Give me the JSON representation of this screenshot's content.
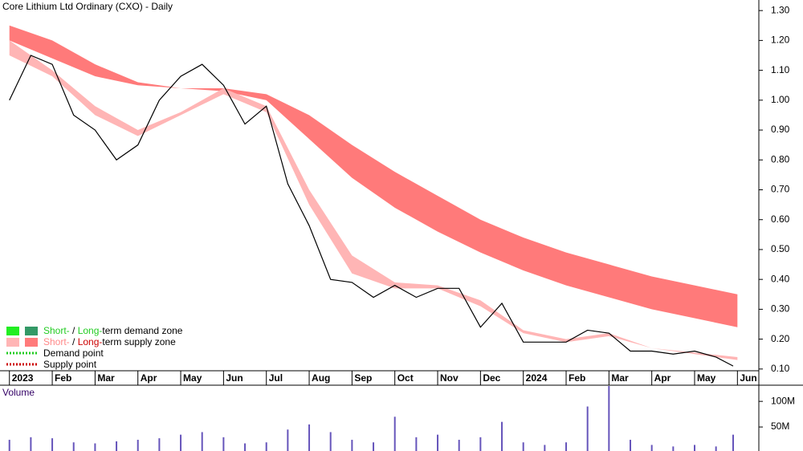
{
  "chart_data": [
    {
      "type": "line",
      "title": "Core Lithium Ltd Ordinary (CXO) - Daily",
      "x": [
        0,
        0.5,
        1,
        1.5,
        2,
        2.5,
        3,
        3.5,
        4,
        4.5,
        5,
        5.5,
        6,
        6.5,
        7,
        7.5,
        8,
        8.5,
        9,
        9.5,
        10,
        10.5,
        11,
        11.5,
        12,
        12.5,
        13,
        13.5,
        14,
        14.5,
        15,
        15.5,
        16,
        16.5,
        16.9
      ],
      "series": [
        {
          "name": "Close",
          "color": "#000000",
          "values": [
            1.0,
            1.15,
            1.12,
            0.95,
            0.9,
            0.8,
            0.85,
            1.0,
            1.08,
            1.12,
            1.05,
            0.92,
            0.98,
            0.72,
            0.58,
            0.4,
            0.39,
            0.34,
            0.38,
            0.34,
            0.37,
            0.37,
            0.24,
            0.32,
            0.19,
            0.19,
            0.19,
            0.23,
            0.22,
            0.16,
            0.16,
            0.15,
            0.16,
            0.14,
            0.11
          ]
        }
      ],
      "bands": [
        {
          "color": "#ff7a7a",
          "x": [
            0,
            1,
            2,
            3,
            4,
            5,
            6,
            7,
            8,
            9,
            10,
            11,
            12,
            13,
            14,
            15,
            16,
            17
          ],
          "upper": [
            1.25,
            1.2,
            1.12,
            1.06,
            1.04,
            1.04,
            1.02,
            0.95,
            0.85,
            0.76,
            0.68,
            0.6,
            0.54,
            0.49,
            0.45,
            0.41,
            0.38,
            0.35
          ],
          "lower": [
            1.2,
            1.14,
            1.08,
            1.05,
            1.04,
            1.03,
            1.0,
            0.87,
            0.74,
            0.64,
            0.56,
            0.49,
            0.43,
            0.38,
            0.34,
            0.3,
            0.27,
            0.24
          ]
        },
        {
          "color": "#ffb5b5",
          "x": [
            0,
            1,
            2,
            3,
            4,
            5,
            6,
            7,
            8,
            9,
            10,
            11,
            12,
            13,
            14,
            15,
            16,
            17
          ],
          "upper": [
            1.2,
            1.1,
            0.98,
            0.9,
            0.96,
            1.04,
            0.98,
            0.7,
            0.48,
            0.39,
            0.38,
            0.33,
            0.23,
            0.2,
            0.22,
            0.17,
            0.155,
            0.14
          ],
          "lower": [
            1.15,
            1.08,
            0.95,
            0.88,
            0.95,
            1.02,
            0.96,
            0.65,
            0.42,
            0.37,
            0.37,
            0.31,
            0.22,
            0.19,
            0.21,
            0.17,
            0.15,
            0.13
          ]
        }
      ],
      "xlim": [
        -0.22,
        17.5
      ],
      "xticks": [
        {
          "value": 0,
          "label": "2023"
        },
        {
          "value": 1,
          "label": "Feb"
        },
        {
          "value": 2,
          "label": "Mar"
        },
        {
          "value": 3,
          "label": "Apr"
        },
        {
          "value": 4,
          "label": "May"
        },
        {
          "value": 5,
          "label": "Jun"
        },
        {
          "value": 6,
          "label": "Jul"
        },
        {
          "value": 7,
          "label": "Aug"
        },
        {
          "value": 8,
          "label": "Sep"
        },
        {
          "value": 9,
          "label": "Oct"
        },
        {
          "value": 10,
          "label": "Nov"
        },
        {
          "value": 11,
          "label": "Dec"
        },
        {
          "value": 12,
          "label": "2024"
        },
        {
          "value": 13,
          "label": "Feb"
        },
        {
          "value": 14,
          "label": "Mar"
        },
        {
          "value": 15,
          "label": "Apr"
        },
        {
          "value": 16,
          "label": "May"
        },
        {
          "value": 17,
          "label": "Jun"
        }
      ],
      "ylim": [
        0.07,
        1.33
      ],
      "yticks": [
        {
          "value": 0.1,
          "label": "0.10"
        },
        {
          "value": 0.2,
          "label": "0.20"
        },
        {
          "value": 0.3,
          "label": "0.30"
        },
        {
          "value": 0.4,
          "label": "0.40"
        },
        {
          "value": 0.5,
          "label": "0.50"
        },
        {
          "value": 0.6,
          "label": "0.60"
        },
        {
          "value": 0.7,
          "label": "0.70"
        },
        {
          "value": 0.8,
          "label": "0.80"
        },
        {
          "value": 0.9,
          "label": "0.90"
        },
        {
          "value": 1.0,
          "label": "1.00"
        },
        {
          "value": 1.1,
          "label": "1.10"
        },
        {
          "value": 1.2,
          "label": "1.20"
        },
        {
          "value": 1.3,
          "label": "1.30"
        }
      ],
      "legend": [
        {
          "parts": [
            "Short-",
            " / ",
            "Long-",
            "term demand zone"
          ]
        },
        {
          "parts": [
            "Short-",
            " / ",
            "Long-",
            "term supply zone"
          ]
        },
        {
          "parts": [
            "Demand point"
          ]
        },
        {
          "parts": [
            "Supply point"
          ]
        }
      ]
    },
    {
      "type": "bar",
      "title": "Volume",
      "color": "#6655bb",
      "x": [
        0,
        0.5,
        1,
        1.5,
        2,
        2.5,
        3,
        3.5,
        4,
        4.5,
        5,
        5.5,
        6,
        6.5,
        7,
        7.5,
        8,
        8.5,
        9,
        9.5,
        10,
        10.5,
        11,
        11.5,
        12,
        12.5,
        13,
        13.5,
        14,
        14.5,
        15,
        15.5,
        16,
        16.5,
        16.9
      ],
      "values": [
        25,
        30,
        28,
        20,
        18,
        22,
        25,
        28,
        35,
        40,
        30,
        18,
        20,
        45,
        55,
        40,
        25,
        20,
        70,
        30,
        35,
        25,
        30,
        60,
        20,
        15,
        20,
        90,
        130,
        25,
        15,
        12,
        15,
        12,
        35
      ],
      "ylim": [
        0,
        130
      ],
      "yticks": [
        {
          "value": 50,
          "label": "50M"
        },
        {
          "value": 100,
          "label": "100M"
        }
      ]
    }
  ]
}
